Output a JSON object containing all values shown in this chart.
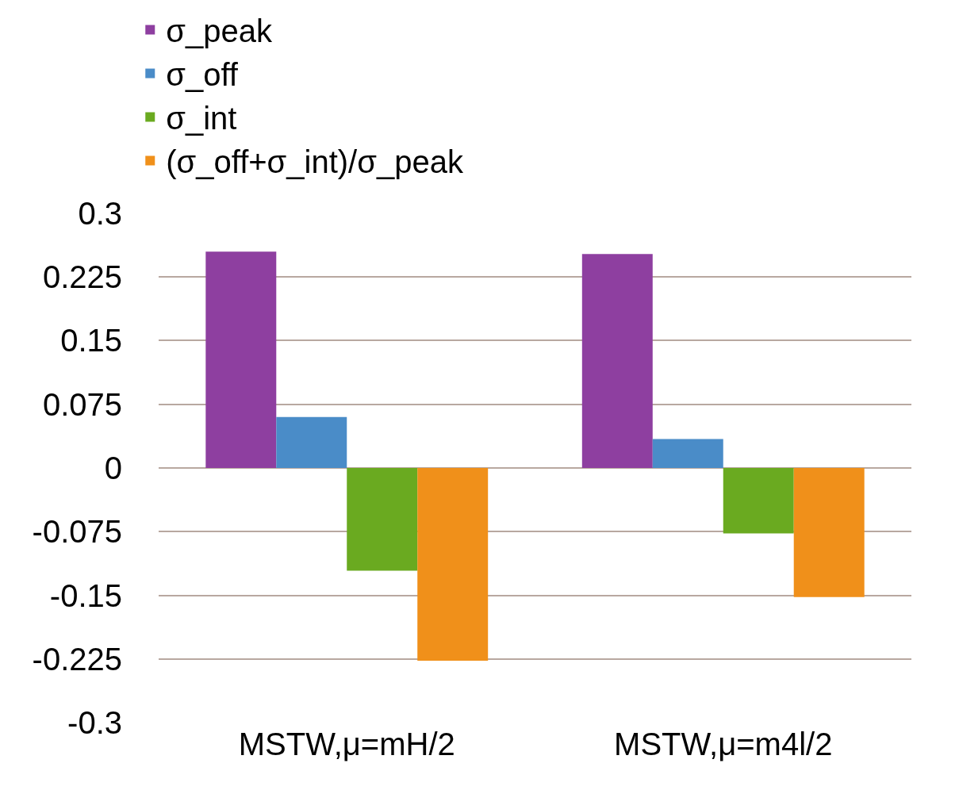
{
  "chart_data": {
    "type": "bar",
    "categories": [
      "MSTW,μ=mH/2",
      "MSTW,μ=m4l/2"
    ],
    "series": [
      {
        "name": "σ_peak",
        "color": "#8e3fa0",
        "values": [
          0.255,
          0.252
        ]
      },
      {
        "name": "σ_off",
        "color": "#4a8cc8",
        "values": [
          0.06,
          0.034
        ]
      },
      {
        "name": "σ_int",
        "color": "#6aaa20",
        "values": [
          -0.121,
          -0.077
        ]
      },
      {
        "name": "(σ_off+σ_int)/σ_peak",
        "color": "#f0901a",
        "values": [
          -0.227,
          -0.152
        ]
      }
    ],
    "ylim": [
      -0.3,
      0.3
    ],
    "yticks": [
      -0.3,
      -0.225,
      -0.15,
      -0.075,
      0,
      0.075,
      0.15,
      0.225,
      0.3
    ],
    "grid": "y",
    "legend": "top"
  }
}
